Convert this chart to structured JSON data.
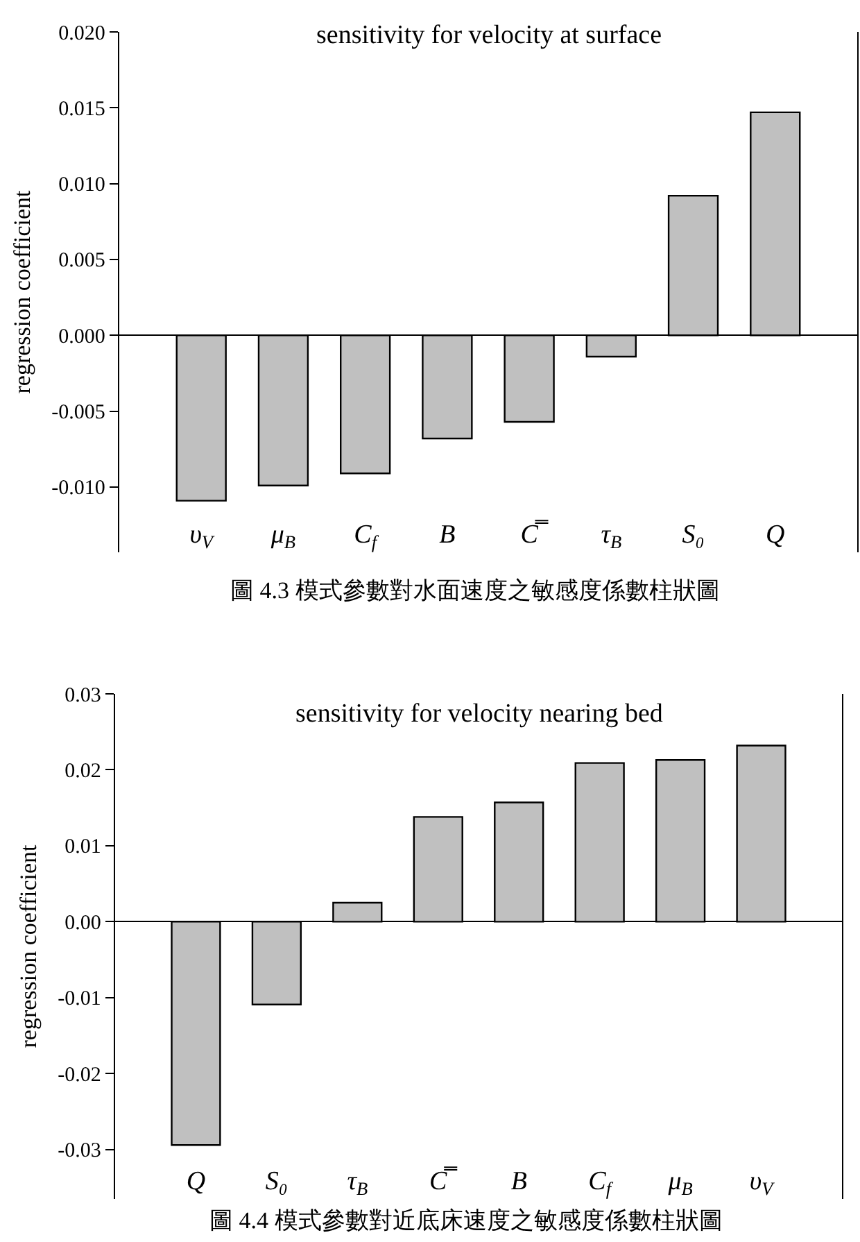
{
  "chart_data": [
    {
      "type": "bar",
      "title": "sensitivity for velocity at surface",
      "ylabel": "regression coefficient",
      "categories": [
        "υ$_{V}$",
        "μ$_{B}$",
        "C$_{f}$",
        "B",
        "C̿",
        "τ$_{B}$",
        "S₀",
        "Q"
      ],
      "values": [
        -0.0109,
        -0.0099,
        -0.0091,
        -0.0068,
        -0.0057,
        -0.0014,
        0.0092,
        0.0147
      ],
      "color": "#c0c0c0",
      "ylim": [
        -0.0143,
        0.02
      ],
      "yticks": [
        {
          "value": -0.01,
          "label": "-0.010"
        },
        -0.005,
        {
          "value": 0,
          "label": "0.000"
        },
        0.005,
        {
          "value": 0.01,
          "label": "0.010"
        },
        0.015,
        {
          "value": 0.02,
          "label": "0.020"
        }
      ],
      "annotations": [
        "圖 4.3 模式參數對水面速度之敏感度係數柱狀圖"
      ]
    },
    {
      "type": "bar",
      "title": "sensitivity for velocity nearing bed",
      "ylabel": "regression coefficient",
      "categories": [
        "Q",
        "S₀",
        "τ$_{B}$",
        "C̿",
        "B",
        "C$_{f}$",
        "μ$_{B}$",
        "υ$_{V}$"
      ],
      "values": [
        -0.0294,
        -0.0109,
        0.0025,
        0.0138,
        0.0157,
        0.0209,
        0.0213,
        0.0232
      ],
      "color": "#c0c0c0",
      "ylim": [
        -0.0365,
        0.03
      ],
      "yticks": [
        -0.03,
        -0.02,
        -0.01,
        {
          "value": 0,
          "label": "0.00"
        },
        0.01,
        0.02,
        0.03
      ],
      "annotations": [
        "圖 4.4 模式參數對近底床速度之敏感度係數柱狀圖"
      ]
    }
  ]
}
